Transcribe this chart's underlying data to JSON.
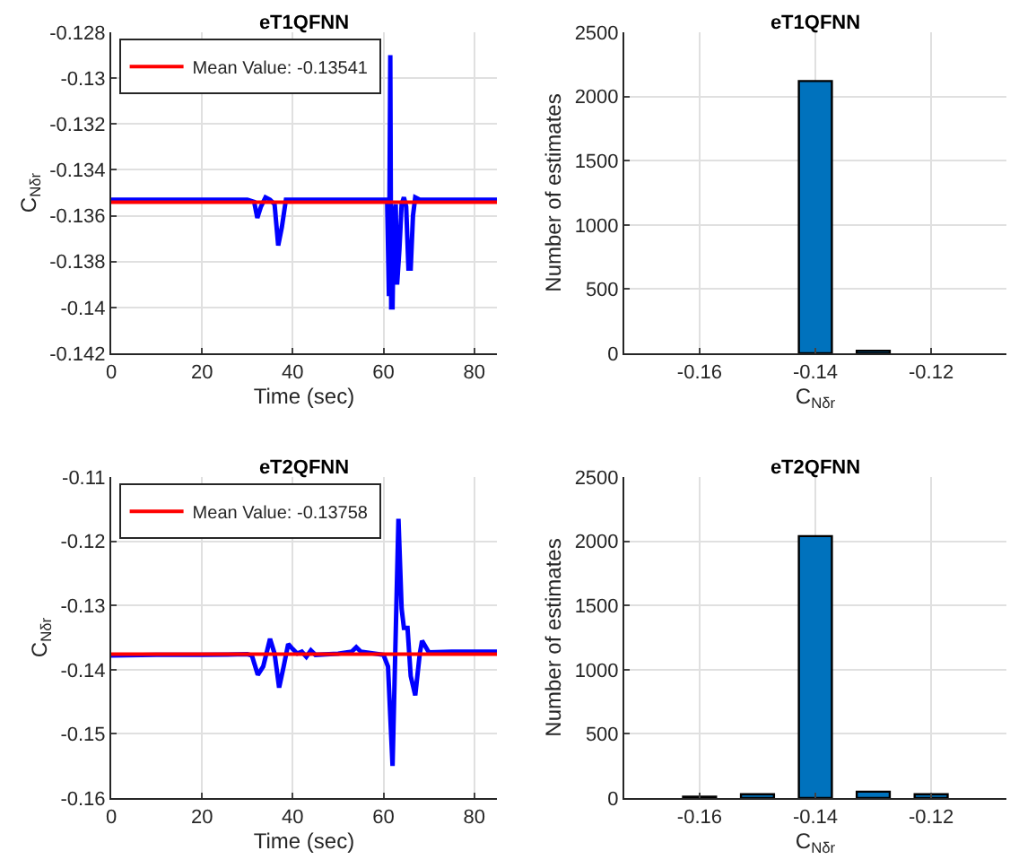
{
  "chart_data": [
    {
      "type": "line",
      "title": "eT1QFNN",
      "xlabel": "Time (sec)",
      "ylabel": "C$_{Nδr}$",
      "xlim": [
        0,
        85
      ],
      "xticks": [
        0,
        20,
        40,
        60,
        80
      ],
      "ylim": [
        -0.142,
        -0.128
      ],
      "yticks": [
        -0.142,
        -0.14,
        -0.138,
        -0.136,
        -0.134,
        -0.132,
        {
          "value": -0.13,
          "label": "-0.13"
        },
        -0.128
      ],
      "grid": true,
      "legend": "top left",
      "marker": "none",
      "line_style": "solid",
      "series": [
        {
          "color": "#0000ff",
          "x": [
            0,
            10,
            20,
            30,
            31.5,
            32.2,
            33,
            34,
            35,
            36,
            36.8,
            37.6,
            38.5,
            40,
            50,
            60,
            60.8,
            61.2,
            61.5,
            61.7,
            62,
            62.3,
            62.7,
            63,
            63.5,
            64,
            64.5,
            65,
            65.5,
            66,
            66.5,
            67,
            68,
            75,
            85
          ],
          "values": [
            -0.1353,
            -0.1353,
            -0.1353,
            -0.1353,
            -0.1354,
            -0.1361,
            -0.1356,
            -0.1352,
            -0.1353,
            -0.1355,
            -0.1373,
            -0.1365,
            -0.1353,
            -0.1353,
            -0.1353,
            -0.1353,
            -0.1353,
            -0.1395,
            -0.129,
            -0.14,
            -0.14,
            -0.136,
            -0.1355,
            -0.139,
            -0.1375,
            -0.1355,
            -0.1352,
            -0.1356,
            -0.1383,
            -0.1383,
            -0.136,
            -0.1352,
            -0.1353,
            -0.1353,
            -0.1353
          ]
        },
        {
          "name": "Mean Value: -0.13541",
          "color": "#ff0000",
          "x": [
            0,
            85
          ],
          "values": [
            -0.13541,
            -0.13541
          ]
        }
      ]
    },
    {
      "type": "bar",
      "title": "eT1QFNN",
      "xlabel": "C$_{Nδr}$",
      "ylabel": "Number of estimates",
      "x": [
        -0.16,
        -0.15,
        -0.14,
        -0.13,
        -0.12
      ],
      "values": [
        0,
        0,
        2120,
        20,
        0
      ],
      "color": "#0072bd",
      "xlim": [
        -0.173,
        -0.107
      ],
      "xticks": [
        -0.16,
        -0.14,
        -0.12
      ],
      "ylim": [
        0,
        2500
      ],
      "yticks": [
        0,
        500,
        1000,
        1500,
        2000,
        2500
      ],
      "grid": true
    },
    {
      "type": "line",
      "title": "eT2QFNN",
      "xlabel": "Time (sec)",
      "ylabel": "C$_{Nδr}$",
      "xlim": [
        0,
        85
      ],
      "xticks": [
        0,
        20,
        40,
        60,
        80
      ],
      "ylim": [
        -0.16,
        -0.11
      ],
      "yticks": [
        -0.16,
        -0.15,
        -0.14,
        -0.13,
        -0.12,
        -0.11
      ],
      "grid": true,
      "legend": "top left",
      "marker": "none",
      "line_style": "solid",
      "series": [
        {
          "color": "#0000ff",
          "x": [
            0,
            10,
            20,
            30,
            31,
            32.3,
            33.5,
            35,
            36,
            37,
            38,
            39,
            40,
            41,
            42,
            43,
            44,
            45,
            50,
            53,
            54,
            55,
            60,
            61,
            62,
            63.3,
            64,
            64.5,
            65.3,
            66,
            67,
            68,
            68.5,
            70,
            75,
            85
          ],
          "values": [
            -0.1378,
            -0.1377,
            -0.1377,
            -0.1376,
            -0.1378,
            -0.1408,
            -0.1395,
            -0.1352,
            -0.1375,
            -0.1428,
            -0.1395,
            -0.136,
            -0.1368,
            -0.1375,
            -0.1372,
            -0.138,
            -0.137,
            -0.1377,
            -0.1375,
            -0.1372,
            -0.1365,
            -0.1372,
            -0.1377,
            -0.1395,
            -0.155,
            -0.1165,
            -0.1305,
            -0.1335,
            -0.1335,
            -0.141,
            -0.144,
            -0.1375,
            -0.1355,
            -0.1373,
            -0.1372,
            -0.1372
          ]
        },
        {
          "name": "Mean Value: -0.13758",
          "color": "#ff0000",
          "x": [
            0,
            85
          ],
          "values": [
            -0.13758,
            -0.13758
          ]
        }
      ]
    },
    {
      "type": "bar",
      "title": "eT2QFNN",
      "xlabel": "C$_{Nδr}$",
      "ylabel": "Number of estimates",
      "x": [
        -0.16,
        -0.15,
        -0.14,
        -0.13,
        -0.12
      ],
      "values": [
        10,
        30,
        2040,
        50,
        30
      ],
      "color": "#0072bd",
      "xlim": [
        -0.173,
        -0.107
      ],
      "xticks": [
        -0.16,
        -0.14,
        -0.12
      ],
      "ylim": [
        0,
        2500
      ],
      "yticks": [
        0,
        500,
        1000,
        1500,
        2000,
        2500
      ],
      "grid": true
    }
  ]
}
